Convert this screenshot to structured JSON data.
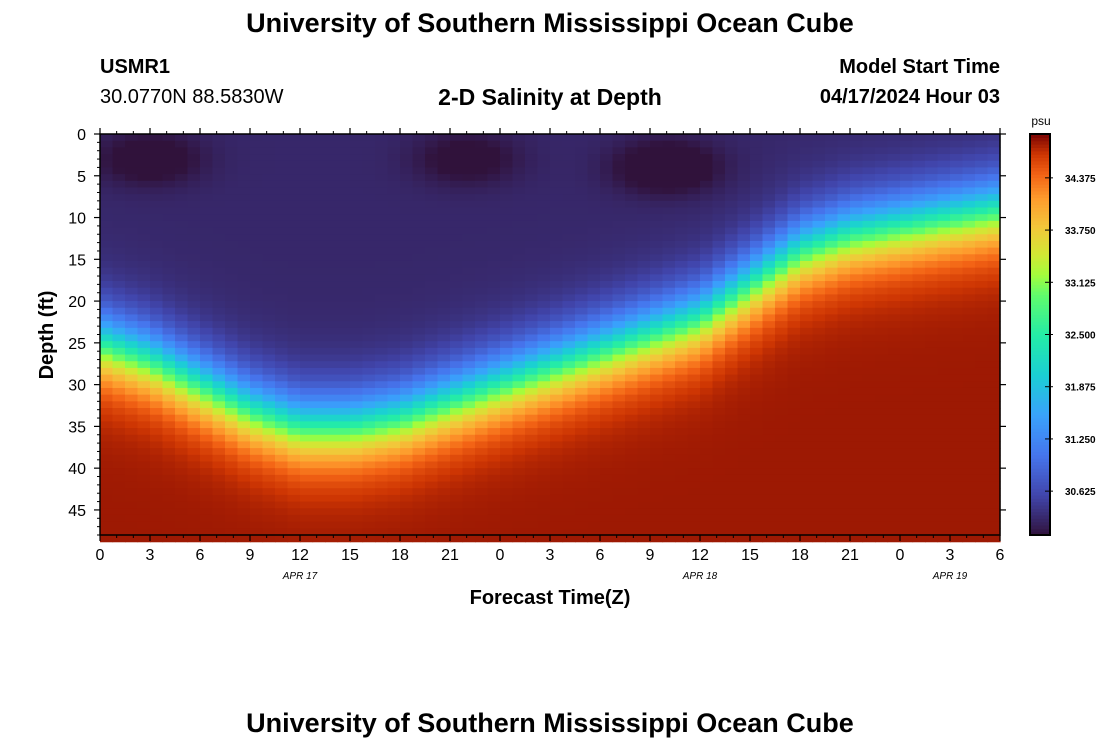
{
  "header": {
    "title": "University of Southern Mississippi Ocean Cube",
    "station_id": "USMR1",
    "coordinates": "30.0770N  88.5830W",
    "subtitle": "2-D Salinity at Depth",
    "model_start_label": "Model Start Time",
    "model_start_value": "04/17/2024 Hour 03"
  },
  "footer": {
    "title": "University of Southern Mississippi Ocean Cube"
  },
  "colors": {
    "background": "#ffffff",
    "axis": "#000000",
    "low_salinity": "#30123b",
    "high_salinity": "#7a0403"
  },
  "chart_data": {
    "type": "heatmap",
    "title": "2-D Salinity at Depth",
    "xlabel": "Forecast Time(Z)",
    "ylabel": "Depth (ft)",
    "x_range_hours": [
      0,
      54
    ],
    "x_tick_labels": [
      "0",
      "3",
      "6",
      "9",
      "12",
      "15",
      "18",
      "21",
      "0",
      "3",
      "6",
      "9",
      "12",
      "15",
      "18",
      "21",
      "0",
      "3",
      "6"
    ],
    "date_labels": [
      {
        "text": "APR 17",
        "at_hour": 12
      },
      {
        "text": "APR 18",
        "at_hour": 36
      },
      {
        "text": "APR 19",
        "at_hour": 51
      }
    ],
    "y_range_ft": [
      0,
      48
    ],
    "y_ticks": [
      0,
      5,
      10,
      15,
      20,
      25,
      30,
      35,
      40,
      45
    ],
    "colorbar": {
      "units": "psu",
      "min": 30.1,
      "max": 34.9,
      "ticks": [
        "34.375",
        "33.750",
        "33.125",
        "32.500",
        "31.875",
        "31.250",
        "30.625"
      ]
    },
    "halocline_depth_ft_by_hour": [
      [
        0,
        25
      ],
      [
        3,
        27
      ],
      [
        6,
        30
      ],
      [
        9,
        33
      ],
      [
        12,
        35
      ],
      [
        15,
        35
      ],
      [
        18,
        34
      ],
      [
        21,
        32
      ],
      [
        24,
        30
      ],
      [
        27,
        28
      ],
      [
        30,
        26
      ],
      [
        33,
        24
      ],
      [
        36,
        22
      ],
      [
        39,
        18
      ],
      [
        42,
        14
      ],
      [
        45,
        12
      ],
      [
        48,
        11
      ],
      [
        51,
        10
      ],
      [
        54,
        9
      ]
    ],
    "surface_salinity_psu": 30.3,
    "bottom_salinity_psu": 34.8,
    "low_salinity_pockets": [
      {
        "hour": 3,
        "depth_ft": 3,
        "salinity_psu": 30.2
      },
      {
        "hour": 22,
        "depth_ft": 3,
        "salinity_psu": 30.25
      },
      {
        "hour": 34,
        "depth_ft": 4,
        "salinity_psu": 30.1
      }
    ]
  }
}
